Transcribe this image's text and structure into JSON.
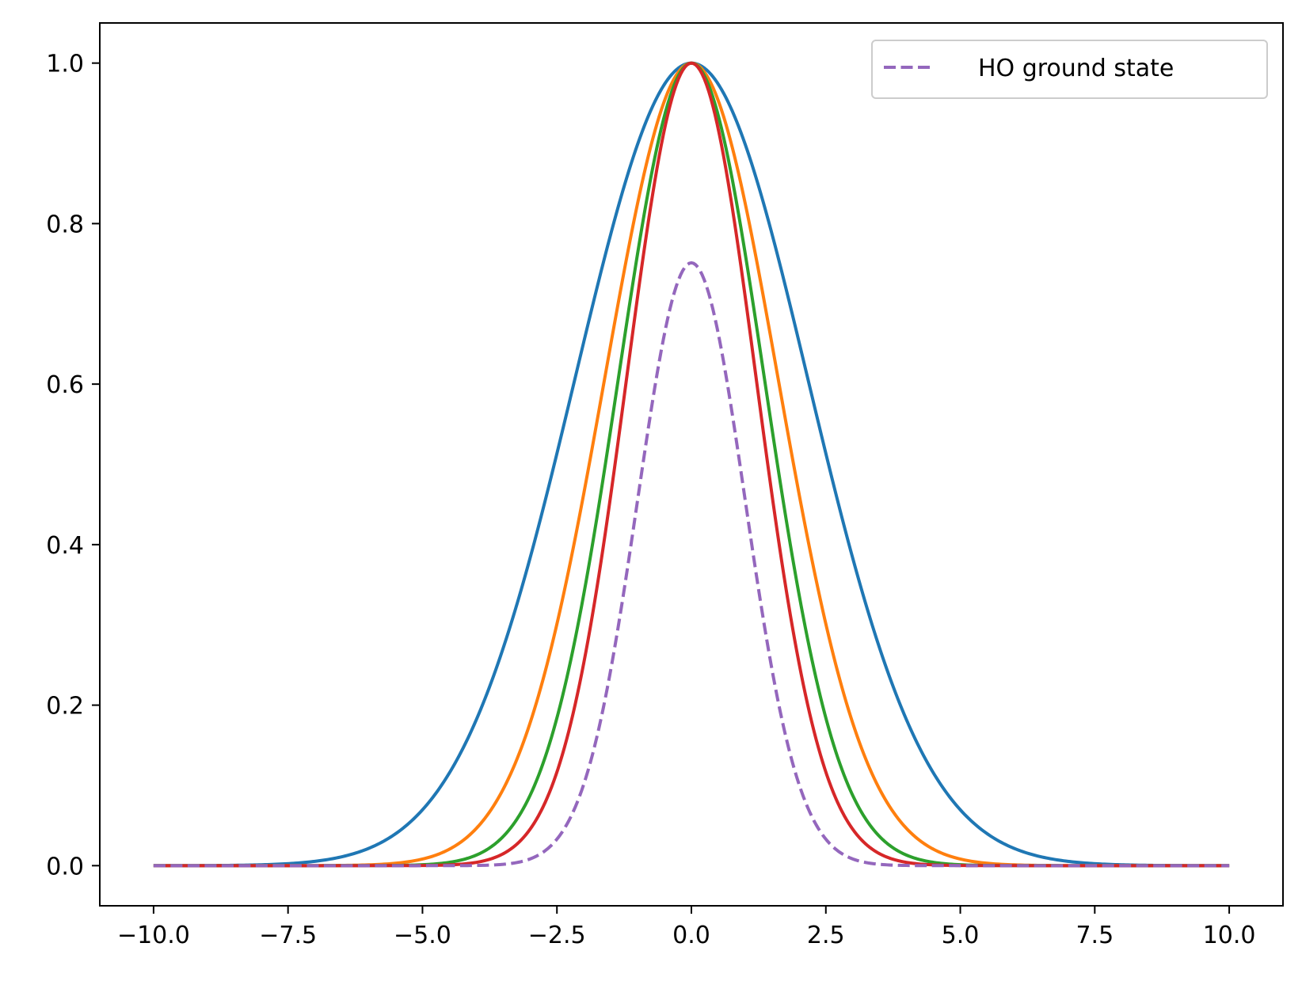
{
  "chart_data": {
    "type": "line",
    "title": "",
    "xlabel": "",
    "ylabel": "",
    "xlim": [
      -11.0,
      11.0
    ],
    "ylim": [
      -0.05,
      1.05
    ],
    "xticks": [
      -10.0,
      -7.5,
      -5.0,
      -2.5,
      0.0,
      2.5,
      5.0,
      7.5,
      10.0
    ],
    "xtick_labels": [
      "−10.0",
      "−7.5",
      "−5.0",
      "−2.5",
      "0.0",
      "2.5",
      "5.0",
      "7.5",
      "10.0"
    ],
    "yticks": [
      0.0,
      0.2,
      0.4,
      0.6,
      0.8,
      1.0
    ],
    "ytick_labels": [
      "0.0",
      "0.2",
      "0.4",
      "0.6",
      "0.8",
      "1.0"
    ],
    "grid": false,
    "legend_position": "top-right",
    "x_domain": [
      -10.0,
      10.0
    ],
    "series": [
      {
        "color": "#1f77b4",
        "style": "solid",
        "peak": 1.0,
        "half_width_at_half_max": 2.55
      },
      {
        "color": "#ff7f0e",
        "style": "solid",
        "peak": 1.0,
        "half_width_at_half_max": 1.9
      },
      {
        "color": "#2ca02c",
        "style": "solid",
        "peak": 1.0,
        "half_width_at_half_max": 1.6
      },
      {
        "color": "#d62728",
        "style": "solid",
        "peak": 1.0,
        "half_width_at_half_max": 1.42
      },
      {
        "name": "HO ground state",
        "color": "#9467bd",
        "style": "dashed",
        "peak": 0.7511,
        "half_width_at_half_max": 1.1774
      }
    ]
  }
}
